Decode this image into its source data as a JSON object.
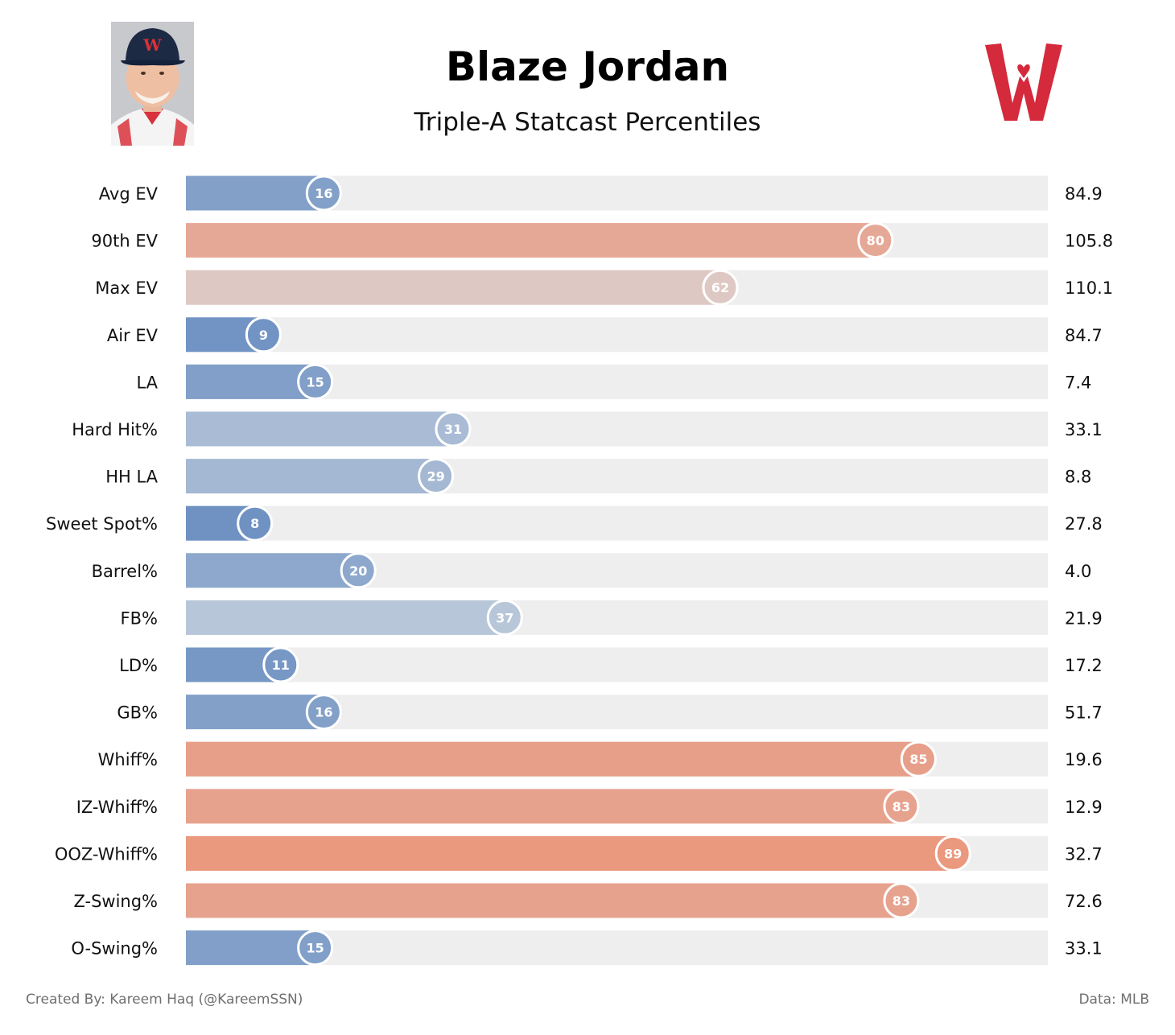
{
  "header": {
    "title": "Blaze Jordan",
    "subtitle": "Triple-A Statcast Percentiles"
  },
  "footer": {
    "credit": "Created By: Kareem Haq (@KareemSSN)",
    "source": "Data: MLB"
  },
  "colors": {
    "track": "#eeeeee",
    "low": "#5b84bd",
    "neutral": "#d8dde3",
    "high": "#ef8462",
    "logo_red": "#d42a3c"
  },
  "chart_data": {
    "type": "bar",
    "orientation": "horizontal",
    "title": "Triple-A Statcast Percentiles",
    "xlim": [
      0,
      100
    ],
    "grid": false,
    "legend": "none",
    "categories": [
      "Avg EV",
      "90th EV",
      "Max EV",
      "Air EV",
      "LA",
      "Hard Hit%",
      "HH LA",
      "Sweet Spot%",
      "Barrel%",
      "FB%",
      "LD%",
      "GB%",
      "Whiff%",
      "IZ-Whiff%",
      "OOZ-Whiff%",
      "Z-Swing%",
      "O-Swing%"
    ],
    "percentiles": [
      16,
      80,
      62,
      9,
      15,
      31,
      29,
      8,
      20,
      37,
      11,
      16,
      85,
      83,
      89,
      83,
      15
    ],
    "stat_values": [
      "84.9",
      "105.8",
      "110.1",
      "84.7",
      "7.4",
      "33.1",
      "8.8",
      "27.8",
      "4.0",
      "21.9",
      "17.2",
      "51.7",
      "19.6",
      "12.9",
      "32.7",
      "72.6",
      "33.1"
    ]
  }
}
